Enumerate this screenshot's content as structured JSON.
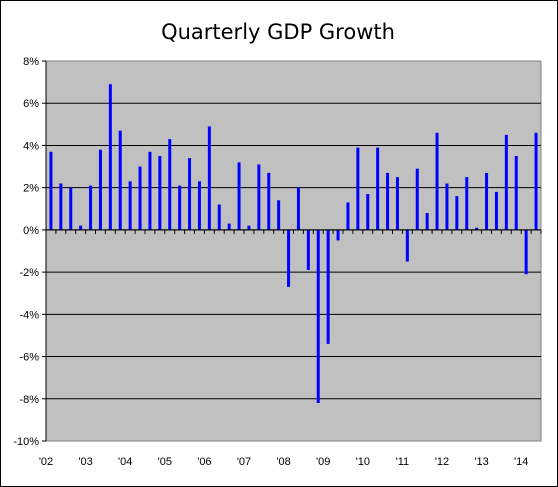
{
  "chart_data": {
    "type": "bar",
    "title": "Quarterly GDP Growth",
    "xlabel": "",
    "ylabel": "",
    "ylim": [
      -10,
      8
    ],
    "y_ticks": [
      8,
      6,
      4,
      2,
      0,
      -2,
      -4,
      -6,
      -8,
      -10
    ],
    "y_tick_labels": [
      "8%",
      "6%",
      "4%",
      "2%",
      "0%",
      "-2%",
      "-4%",
      "-6%",
      "-8%",
      "-10%"
    ],
    "x_tick_labels": [
      "'02",
      "'03",
      "'04",
      "'05",
      "'06",
      "'07",
      "'08",
      "'09",
      "'10",
      "'11",
      "'12",
      "'13",
      "'14"
    ],
    "x_tick_quarter_index": [
      0,
      4,
      8,
      12,
      16,
      20,
      24,
      28,
      32,
      36,
      40,
      44,
      48
    ],
    "grid": "horizontal",
    "legend": "none",
    "bar_color": "#0000ff",
    "plot_background": "#c0c0c0",
    "series": [
      {
        "values": [
          3.7,
          2.2,
          2.0,
          0.2,
          2.1,
          3.8,
          6.9,
          4.7,
          2.3,
          3.0,
          3.7,
          3.5,
          4.3,
          2.1,
          3.4,
          2.3,
          4.9,
          1.2,
          0.3,
          3.2,
          0.2,
          3.1,
          2.7,
          1.4,
          -2.7,
          2.0,
          -1.9,
          -8.2,
          -5.4,
          -0.5,
          1.3,
          3.9,
          1.7,
          3.9,
          2.7,
          2.5,
          -1.5,
          2.9,
          0.8,
          4.6,
          2.2,
          1.6,
          2.5,
          0.1,
          2.7,
          1.8,
          4.5,
          3.5,
          -2.1,
          4.6
        ]
      }
    ]
  }
}
